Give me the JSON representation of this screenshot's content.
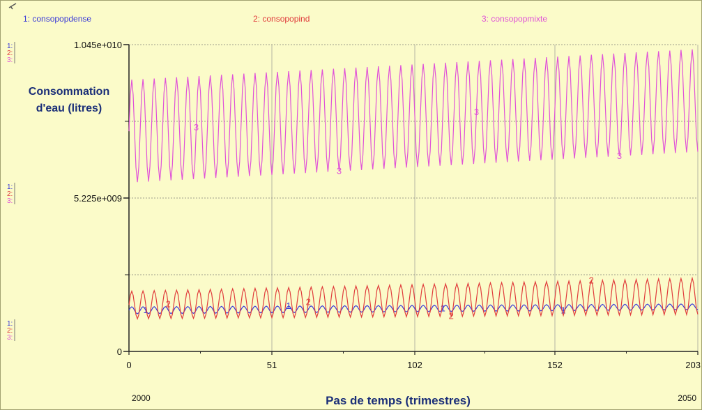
{
  "chart_data": {
    "type": "line",
    "title": "",
    "xlabel": "Pas de temps (trimestres)",
    "ylabel_lines": [
      "Consommation",
      "d'eau (litres)"
    ],
    "x_ticks": [
      "0",
      "51",
      "102",
      "152",
      "203"
    ],
    "y_ticks": [
      "0",
      "5.225e+009",
      "1.045e+010"
    ],
    "xlim": [
      0,
      203
    ],
    "ylim": [
      0,
      10450000000
    ],
    "grid": true,
    "years": {
      "start": "2000",
      "end": "2050"
    },
    "scale_tags": [
      "1:",
      "2:",
      "3:"
    ],
    "series": [
      {
        "id": "1",
        "name": "1: consopopdense",
        "color": "#3a3ad8",
        "base_start": 1400000000,
        "base_end": 1520000000,
        "amp_start": 120000000,
        "amp_end": 100000000,
        "period": 4,
        "label_x": [
          6,
          57,
          112,
          155
        ]
      },
      {
        "id": "2",
        "name": "2: consopopind",
        "color": "#e03c3c",
        "base_start": 1580000000,
        "base_end": 1880000000,
        "amp_start": 470000000,
        "amp_end": 620000000,
        "period": 4,
        "label_x": [
          14,
          64,
          115,
          165
        ]
      },
      {
        "id": "3",
        "name": "3: consopopmixte",
        "color": "#e052d8",
        "base_start": 7500000000,
        "base_end": 8550000000,
        "amp_start": 1750000000,
        "amp_end": 1750000000,
        "period": 4,
        "label_x": [
          24,
          75,
          124,
          175
        ]
      }
    ]
  }
}
